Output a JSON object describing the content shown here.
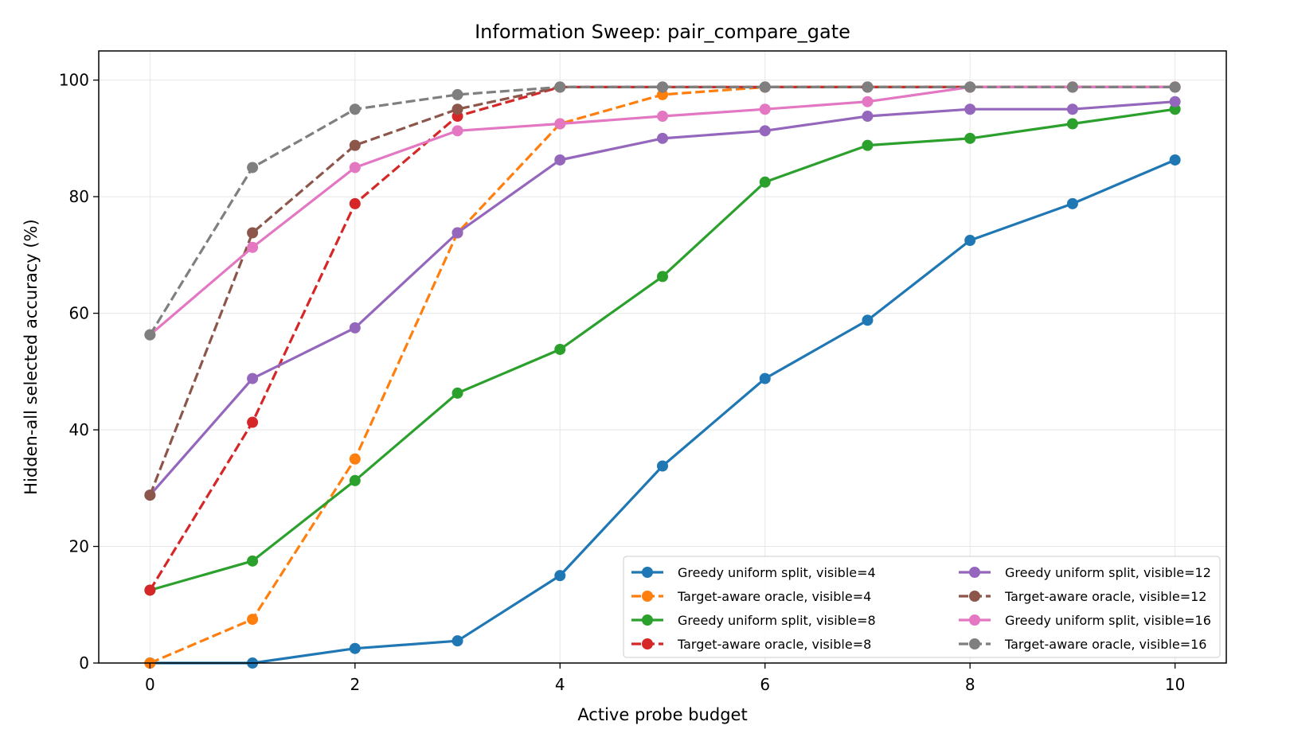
{
  "chart_data": {
    "type": "line",
    "title": "Information Sweep: pair_compare_gate",
    "xlabel": "Active probe budget",
    "ylabel": "Hidden-all selected accuracy (%)",
    "xlim": [
      -0.5,
      10.5
    ],
    "ylim": [
      0,
      105
    ],
    "x_ticks": [
      0,
      2,
      4,
      6,
      8,
      10
    ],
    "y_ticks": [
      0,
      20,
      40,
      60,
      80,
      100
    ],
    "grid": true,
    "legend_placement": "lower-right",
    "legend_columns": 2,
    "x": [
      0,
      1,
      2,
      3,
      4,
      5,
      6,
      7,
      8,
      9,
      10
    ],
    "series": [
      {
        "name": "Greedy uniform split, visible=4",
        "color": "#1f77b4",
        "dashed": false,
        "values": [
          0,
          0,
          2.5,
          3.8,
          15,
          33.8,
          48.8,
          58.8,
          72.5,
          78.8,
          86.3
        ]
      },
      {
        "name": "Target-aware oracle, visible=4",
        "color": "#ff7f0e",
        "dashed": true,
        "values": [
          0,
          7.5,
          35,
          73.8,
          92.5,
          97.5,
          98.8,
          98.8,
          98.8,
          98.8,
          98.8
        ]
      },
      {
        "name": "Greedy uniform split, visible=8",
        "color": "#2ca02c",
        "dashed": false,
        "values": [
          12.5,
          17.5,
          31.3,
          46.3,
          53.8,
          66.3,
          82.5,
          88.8,
          90,
          92.5,
          95
        ]
      },
      {
        "name": "Target-aware oracle, visible=8",
        "color": "#d62728",
        "dashed": true,
        "values": [
          12.5,
          41.3,
          78.8,
          93.8,
          98.8,
          98.8,
          98.8,
          98.8,
          98.8,
          98.8,
          98.8
        ]
      },
      {
        "name": "Greedy uniform split, visible=12",
        "color": "#9467bd",
        "dashed": false,
        "values": [
          28.8,
          48.8,
          57.5,
          73.8,
          86.3,
          90,
          91.3,
          93.8,
          95,
          95,
          96.3
        ]
      },
      {
        "name": "Target-aware oracle, visible=12",
        "color": "#8c564b",
        "dashed": true,
        "values": [
          28.8,
          73.8,
          88.8,
          95,
          98.8,
          98.8,
          98.8,
          98.8,
          98.8,
          98.8,
          98.8
        ]
      },
      {
        "name": "Greedy uniform split, visible=16",
        "color": "#e377c2",
        "dashed": false,
        "values": [
          56.3,
          71.3,
          85,
          91.3,
          92.5,
          93.8,
          95,
          96.3,
          98.8,
          98.8,
          98.8
        ]
      },
      {
        "name": "Target-aware oracle, visible=16",
        "color": "#7f7f7f",
        "dashed": true,
        "values": [
          56.3,
          85,
          95,
          97.5,
          98.8,
          98.8,
          98.8,
          98.8,
          98.8,
          98.8,
          98.8
        ]
      }
    ]
  }
}
